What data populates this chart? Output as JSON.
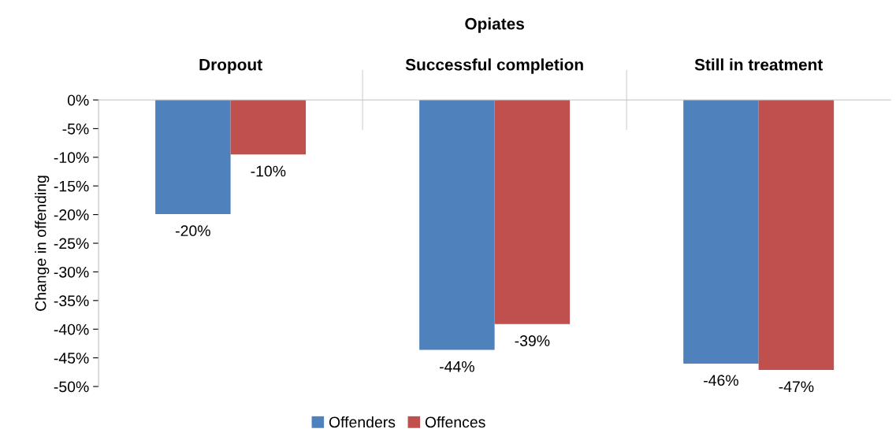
{
  "chart_data": {
    "type": "bar",
    "title": "Opiates",
    "ylabel": "Change in offending",
    "categories": [
      "Dropout",
      "Successful completion",
      "Still in treatment"
    ],
    "series": [
      {
        "name": "Offenders",
        "color": "#4f81bd",
        "values": [
          -19.9,
          -43.6,
          -46.0
        ],
        "value_labels": [
          "-20%",
          "-44%",
          "-46%"
        ]
      },
      {
        "name": "Offences",
        "color": "#c0504d",
        "values": [
          -9.5,
          -39.1,
          -47.1
        ],
        "value_labels": [
          "-10%",
          "-39%",
          "-47%"
        ]
      }
    ],
    "ylim": [
      -50,
      0
    ],
    "yticks": [
      {
        "value": 0,
        "label": "0%"
      },
      {
        "value": -5,
        "label": "-5%"
      },
      {
        "value": -10,
        "label": "-10%"
      },
      {
        "value": -15,
        "label": "-15%"
      },
      {
        "value": -20,
        "label": "-20%"
      },
      {
        "value": -25,
        "label": "-25%"
      },
      {
        "value": -30,
        "label": "-30%"
      },
      {
        "value": -35,
        "label": "-35%"
      },
      {
        "value": -40,
        "label": "-40%"
      },
      {
        "value": -45,
        "label": "-45%"
      },
      {
        "value": -50,
        "label": "-50%"
      }
    ],
    "grid": false,
    "legend": "bottom"
  }
}
